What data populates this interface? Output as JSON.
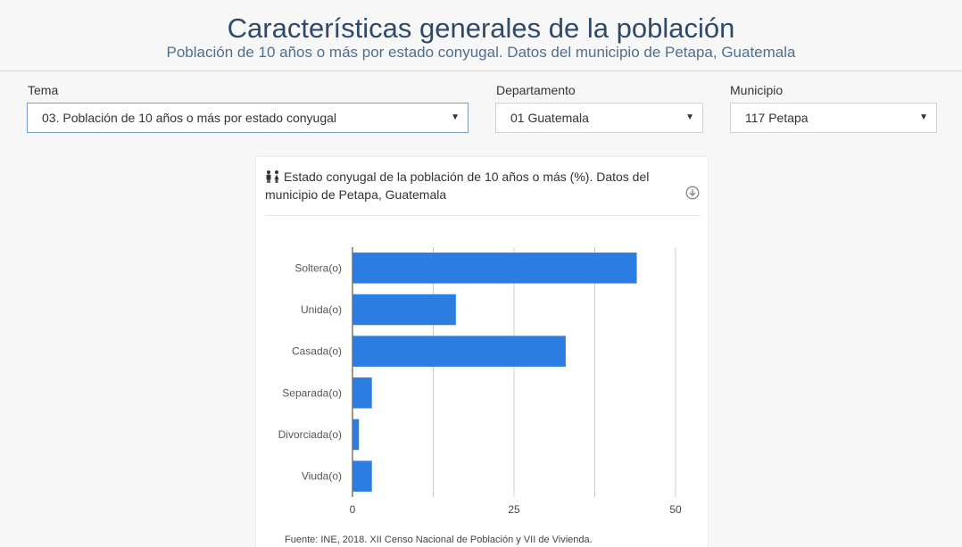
{
  "header": {
    "title": "Características generales de la población",
    "subtitle": "Población de 10 años o más por estado conyugal. Datos del municipio de Petapa, Guatemala"
  },
  "filters": {
    "tema": {
      "label": "Tema",
      "value": "03. Población de 10 años o más por estado conyugal"
    },
    "departamento": {
      "label": "Departamento",
      "value": "01 Guatemala"
    },
    "municipio": {
      "label": "Municipio",
      "value": "117 Petapa"
    }
  },
  "card": {
    "title": "Estado conyugal de la población de 10 años o más (%). Datos del municipio de Petapa, Guatemala",
    "title_icon": "people-icon",
    "download_icon": "download-icon",
    "source": "Fuente: INE, 2018. XII Censo Nacional de Población y VII de Vivienda."
  },
  "colors": {
    "bar": "#2b7de1",
    "title": "#2f4a68",
    "subtitle": "#4f6f8f"
  },
  "chart_data": {
    "type": "bar",
    "orientation": "horizontal",
    "categories": [
      "Soltera(o)",
      "Unida(o)",
      "Casada(o)",
      "Separada(o)",
      "Divorciada(o)",
      "Viuda(o)"
    ],
    "values": [
      44,
      16,
      33,
      3,
      1,
      3
    ],
    "xticks": [
      0,
      25,
      50
    ],
    "xlim": [
      0,
      50
    ],
    "grid": true,
    "legend": "none"
  }
}
